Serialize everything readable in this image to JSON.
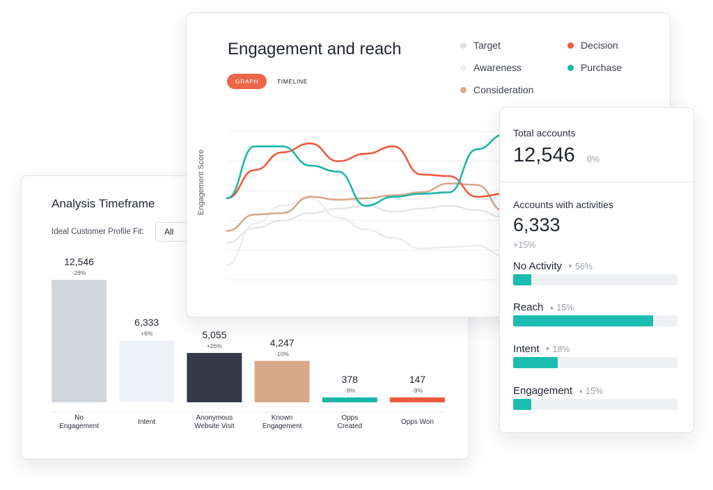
{
  "analysis": {
    "title": "Analysis Timeframe",
    "icp_label": "Ideal Customer Profile Fit:",
    "icp_value": "All"
  },
  "engagement": {
    "title": "Engagement and reach",
    "tabs": [
      "GRAPH",
      "TIMELINE"
    ],
    "active_tab": "GRAPH",
    "legend": [
      {
        "name": "Target",
        "color": "#dfe1e4"
      },
      {
        "name": "Decision",
        "color": "#f05a3c"
      },
      {
        "name": "Awareness",
        "color": "#eceef0"
      },
      {
        "name": "Purchase",
        "color": "#1bb6aa"
      },
      {
        "name": "Consideration",
        "color": "#d9a88a"
      }
    ],
    "y_axis_label": "Engagement Score"
  },
  "accounts": {
    "total_label": "Total accounts",
    "total_value": "12,546",
    "total_change": "0%",
    "activities_label": "Accounts with activities",
    "activities_value": "6,333",
    "activities_change": "+15%",
    "metrics": [
      {
        "label": "No Activity",
        "direction": "down",
        "delta": "56%",
        "fill": 0.11
      },
      {
        "label": "Reach",
        "direction": "up",
        "delta": "15%",
        "fill": 0.85
      },
      {
        "label": "Intent",
        "direction": "down",
        "delta": "18%",
        "fill": 0.27
      },
      {
        "label": "Engagement",
        "direction": "up",
        "delta": "15%",
        "fill": 0.11
      }
    ]
  },
  "chart_data": [
    {
      "type": "bar",
      "categories": [
        "No\nEngagement",
        "Intent",
        "Anonymous\nWebsite Visit",
        "Known\nEngagement",
        "Opps\nCreated",
        "Opps Won"
      ],
      "values": [
        12546,
        6333,
        5055,
        4247,
        378,
        147
      ],
      "value_labels": [
        "12,546",
        "6,333",
        "5,055",
        "4,247",
        "378",
        "147"
      ],
      "change_labels": [
        "-28%",
        "+6%",
        "+26%",
        "-10%",
        "-9%",
        "-9%"
      ],
      "colors": [
        "#d1d5dc",
        "#eef1f5",
        "#343a4a",
        "#d9a88a",
        "#1bb6aa",
        "#f05a3c"
      ],
      "title": "",
      "xlabel": "",
      "ylabel": ""
    },
    {
      "type": "line",
      "title": "",
      "xlabel": "",
      "ylabel": "Engagement Score",
      "ylim": [
        0,
        100
      ],
      "grid": true,
      "x": [
        0,
        1,
        2,
        3,
        4,
        5,
        6,
        7,
        8,
        9,
        10,
        11,
        12,
        13,
        14,
        15,
        16
      ],
      "series": [
        {
          "name": "Target",
          "color": "#e4e6e9",
          "values": [
            25,
            35,
            40,
            45,
            48,
            50,
            46,
            48,
            50,
            47,
            42,
            38,
            55,
            58,
            66,
            70,
            73
          ]
        },
        {
          "name": "Awareness",
          "color": "#ededef",
          "values": [
            10,
            38,
            50,
            55,
            42,
            34,
            28,
            21,
            22,
            23,
            16,
            21,
            58,
            48,
            40,
            44,
            46
          ]
        },
        {
          "name": "Consideration",
          "color": "#d9a88a",
          "values": [
            33,
            44,
            45,
            56,
            54,
            55,
            57,
            59,
            65,
            64,
            46,
            44,
            32,
            44,
            33,
            33,
            33
          ]
        },
        {
          "name": "Decision",
          "color": "#f05a3c",
          "values": [
            55,
            74,
            86,
            92,
            80,
            85,
            90,
            71,
            70,
            56,
            58,
            50,
            60,
            57,
            68,
            72,
            76
          ]
        },
        {
          "name": "Purchase",
          "color": "#1bb6aa",
          "values": [
            55,
            90,
            90,
            77,
            73,
            50,
            56,
            58,
            59,
            88,
            98,
            86,
            80,
            62,
            44,
            46,
            48
          ]
        }
      ]
    }
  ]
}
